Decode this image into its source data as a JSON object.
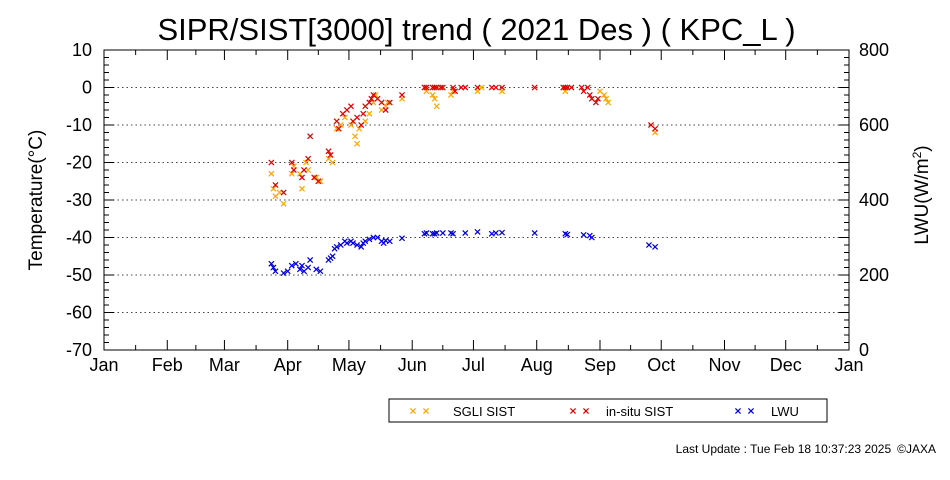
{
  "chart_data": {
    "type": "scatter",
    "title": "SIPR/SIST[3000] trend ( 2021 Des ) ( KPC_L )",
    "ylabel_left": "Temperature(°C)",
    "ylabel_right_base": "LWU(W/m",
    "ylabel_right_sup": "2",
    "ylabel_right_tail": ")",
    "ylim_left": [
      -70,
      10
    ],
    "ylim_right": [
      0,
      800
    ],
    "yticks_left": [
      10,
      0,
      -10,
      -20,
      -30,
      -40,
      -50,
      -60,
      -70
    ],
    "yticks_right": [
      800,
      600,
      400,
      200,
      0
    ],
    "xlim_days": [
      0,
      365
    ],
    "x_unit": "day of year",
    "xtick_labels": [
      "Jan",
      "Feb",
      "Mar",
      "Apr",
      "May",
      "Jun",
      "Jul",
      "Aug",
      "Sep",
      "Oct",
      "Nov",
      "Dec",
      "Jan"
    ],
    "xtick_days": [
      0,
      31,
      59,
      90,
      120,
      151,
      181,
      212,
      243,
      273,
      304,
      334,
      365
    ],
    "grid": "dotted horizontal",
    "legend_placement": "bottom-right",
    "series": [
      {
        "name": "SGLI SIST",
        "color": "#ffa500",
        "axis": "left",
        "points": [
          [
            82,
            -23
          ],
          [
            83,
            -27
          ],
          [
            84,
            -29
          ],
          [
            86,
            -28
          ],
          [
            88,
            -31
          ],
          [
            92,
            -23
          ],
          [
            93,
            -21
          ],
          [
            96,
            -23
          ],
          [
            97,
            -27
          ],
          [
            99,
            -20
          ],
          [
            100,
            -22
          ],
          [
            104,
            -24
          ],
          [
            106,
            -25
          ],
          [
            110,
            -19
          ],
          [
            112,
            -20
          ],
          [
            114,
            -11
          ],
          [
            116,
            -10
          ],
          [
            118,
            -8
          ],
          [
            121,
            -10
          ],
          [
            123,
            -13
          ],
          [
            124,
            -15
          ],
          [
            125,
            -11
          ],
          [
            128,
            -9
          ],
          [
            130,
            -7
          ],
          [
            132,
            -4
          ],
          [
            133,
            -2
          ],
          [
            136,
            -6
          ],
          [
            138,
            -5
          ],
          [
            139,
            -4
          ],
          [
            146,
            -3
          ],
          [
            158,
            -1
          ],
          [
            161,
            -2
          ],
          [
            162,
            -3
          ],
          [
            163,
            -5
          ],
          [
            170,
            -2
          ],
          [
            171,
            -1
          ],
          [
            183,
            -1
          ],
          [
            185,
            0
          ],
          [
            195,
            -1
          ],
          [
            226,
            -1
          ],
          [
            243,
            -1
          ],
          [
            245,
            -2
          ],
          [
            246,
            -3
          ],
          [
            247,
            -4
          ],
          [
            270,
            -12
          ]
        ]
      },
      {
        "name": "in-situ SIST",
        "color": "#e00000",
        "axis": "left",
        "points": [
          [
            82,
            -20
          ],
          [
            84,
            -26
          ],
          [
            88,
            -28
          ],
          [
            92,
            -20
          ],
          [
            93,
            -22
          ],
          [
            97,
            -24
          ],
          [
            98,
            -22
          ],
          [
            100,
            -19
          ],
          [
            101,
            -13
          ],
          [
            103,
            -24
          ],
          [
            105,
            -25
          ],
          [
            110,
            -17
          ],
          [
            111,
            -18
          ],
          [
            114,
            -9
          ],
          [
            115,
            -11
          ],
          [
            117,
            -7
          ],
          [
            119,
            -6
          ],
          [
            121,
            -5
          ],
          [
            122,
            -9
          ],
          [
            124,
            -8
          ],
          [
            126,
            -10
          ],
          [
            127,
            -7
          ],
          [
            128,
            -5
          ],
          [
            130,
            -4
          ],
          [
            131,
            -3
          ],
          [
            132,
            -2
          ],
          [
            134,
            -3
          ],
          [
            136,
            -4
          ],
          [
            138,
            -6
          ],
          [
            140,
            -4
          ],
          [
            146,
            -2
          ],
          [
            157,
            0
          ],
          [
            158,
            0
          ],
          [
            161,
            0
          ],
          [
            162,
            0
          ],
          [
            163,
            0
          ],
          [
            165,
            0
          ],
          [
            166,
            0
          ],
          [
            171,
            0
          ],
          [
            172,
            -1
          ],
          [
            175,
            0
          ],
          [
            177,
            0
          ],
          [
            183,
            0
          ],
          [
            190,
            0
          ],
          [
            192,
            0
          ],
          [
            195,
            0
          ],
          [
            211,
            0
          ],
          [
            225,
            0
          ],
          [
            226,
            0
          ],
          [
            227,
            0
          ],
          [
            229,
            0
          ],
          [
            234,
            0
          ],
          [
            235,
            -1
          ],
          [
            237,
            0
          ],
          [
            238,
            -2
          ],
          [
            239,
            -3
          ],
          [
            241,
            -4
          ],
          [
            242,
            -3
          ],
          [
            268,
            -10
          ],
          [
            270,
            -11
          ]
        ]
      },
      {
        "name": "LWU",
        "color": "#0000e0",
        "axis": "right",
        "points": [
          [
            82,
            230
          ],
          [
            83,
            220
          ],
          [
            84,
            210
          ],
          [
            88,
            205
          ],
          [
            90,
            210
          ],
          [
            92,
            225
          ],
          [
            94,
            230
          ],
          [
            96,
            215
          ],
          [
            97,
            225
          ],
          [
            98,
            210
          ],
          [
            100,
            220
          ],
          [
            101,
            240
          ],
          [
            104,
            215
          ],
          [
            106,
            210
          ],
          [
            110,
            240
          ],
          [
            111,
            245
          ],
          [
            112,
            250
          ],
          [
            113,
            270
          ],
          [
            114,
            275
          ],
          [
            116,
            280
          ],
          [
            118,
            290
          ],
          [
            119,
            285
          ],
          [
            121,
            290
          ],
          [
            122,
            285
          ],
          [
            124,
            280
          ],
          [
            126,
            275
          ],
          [
            127,
            285
          ],
          [
            128,
            290
          ],
          [
            130,
            295
          ],
          [
            132,
            300
          ],
          [
            134,
            300
          ],
          [
            136,
            290
          ],
          [
            137,
            285
          ],
          [
            138,
            292
          ],
          [
            140,
            290
          ],
          [
            146,
            298
          ],
          [
            157,
            310
          ],
          [
            158,
            312
          ],
          [
            161,
            310
          ],
          [
            162,
            310
          ],
          [
            163,
            312
          ],
          [
            166,
            312
          ],
          [
            170,
            312
          ],
          [
            171,
            310
          ],
          [
            177,
            312
          ],
          [
            183,
            315
          ],
          [
            190,
            310
          ],
          [
            192,
            312
          ],
          [
            195,
            313
          ],
          [
            211,
            312
          ],
          [
            226,
            310
          ],
          [
            227,
            308
          ],
          [
            235,
            307
          ],
          [
            238,
            305
          ],
          [
            239,
            300
          ],
          [
            267,
            280
          ],
          [
            270,
            275
          ]
        ]
      }
    ]
  },
  "footer": {
    "last_update": "Last Update : Tue Feb 18 10:37:23 2025",
    "copyright": "©JAXA"
  }
}
